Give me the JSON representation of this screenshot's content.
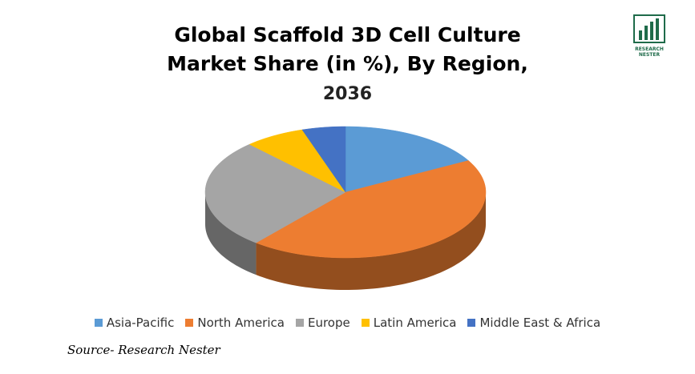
{
  "logo": "RESEARCH NESTER",
  "chart_data": {
    "type": "pie",
    "title": "Global Scaffold 3D Cell Culture Market Share (in %), By Region,",
    "year": "2036",
    "categories": [
      "Asia-Pacific",
      "North America",
      "Europe",
      "Latin America",
      "Middle East & Africa"
    ],
    "values": [
      17,
      44,
      27,
      7,
      5
    ],
    "colors": [
      "#5b9bd5",
      "#ed7d31",
      "#a5a5a5",
      "#ffc000",
      "#4472c4"
    ],
    "legend": "bottom",
    "source": "Source- Research Nester"
  }
}
